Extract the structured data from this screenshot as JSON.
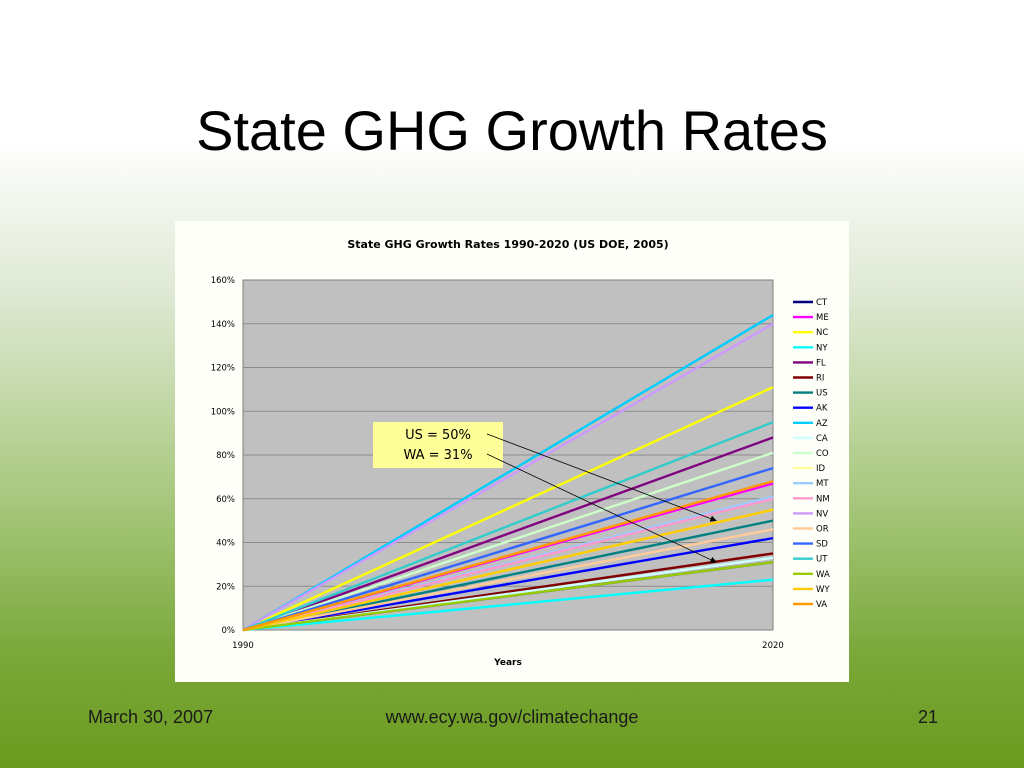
{
  "slide": {
    "title": "State GHG Growth Rates",
    "footer_date": "March 30, 2007",
    "footer_url": "www.ecy.wa.gov/climatechange",
    "page_number": "21"
  },
  "chart_data": {
    "type": "line",
    "title": "State GHG Growth Rates 1990-2020 (US DOE, 2005)",
    "xlabel": "Years",
    "ylabel": "",
    "x": [
      1990,
      2020
    ],
    "x_tick_labels": [
      "1990",
      "2020"
    ],
    "ylim": [
      0,
      1.6
    ],
    "y_ticks": [
      0,
      0.2,
      0.4,
      0.6,
      0.8,
      1.0,
      1.2,
      1.4,
      1.6
    ],
    "y_tick_labels": [
      "0%",
      "20%",
      "40%",
      "60%",
      "80%",
      "100%",
      "120%",
      "140%",
      "160%"
    ],
    "grid": true,
    "plot_background": "#c0c0c0",
    "legend_position": "right",
    "series": [
      {
        "name": "CT",
        "color": "#000080",
        "values": [
          0,
          0.31
        ]
      },
      {
        "name": "ME",
        "color": "#ff00ff",
        "values": [
          0,
          0.67
        ]
      },
      {
        "name": "NC",
        "color": "#ffff00",
        "values": [
          0,
          1.11
        ]
      },
      {
        "name": "NY",
        "color": "#00ffff",
        "values": [
          0,
          0.23
        ]
      },
      {
        "name": "FL",
        "color": "#800080",
        "values": [
          0,
          0.88
        ]
      },
      {
        "name": "RI",
        "color": "#800000",
        "values": [
          0,
          0.35
        ]
      },
      {
        "name": "US",
        "color": "#008080",
        "values": [
          0,
          0.5
        ]
      },
      {
        "name": "AK",
        "color": "#0000ff",
        "values": [
          0,
          0.42
        ]
      },
      {
        "name": "AZ",
        "color": "#00ccff",
        "values": [
          0,
          1.44
        ]
      },
      {
        "name": "CA",
        "color": "#ccffff",
        "values": [
          0,
          0.33
        ]
      },
      {
        "name": "CO",
        "color": "#ccffcc",
        "values": [
          0,
          0.81
        ]
      },
      {
        "name": "ID",
        "color": "#ffff99",
        "values": [
          0,
          0.55
        ]
      },
      {
        "name": "MT",
        "color": "#99ccff",
        "values": [
          0,
          0.61
        ]
      },
      {
        "name": "NM",
        "color": "#ff99cc",
        "values": [
          0,
          0.6
        ]
      },
      {
        "name": "NV",
        "color": "#cc99ff",
        "values": [
          0,
          1.4
        ]
      },
      {
        "name": "OR",
        "color": "#ffcc99",
        "values": [
          0,
          0.46
        ]
      },
      {
        "name": "SD",
        "color": "#3366ff",
        "values": [
          0,
          0.74
        ]
      },
      {
        "name": "UT",
        "color": "#33cccc",
        "values": [
          0,
          0.95
        ]
      },
      {
        "name": "WA",
        "color": "#99cc00",
        "values": [
          0,
          0.31
        ]
      },
      {
        "name": "WY",
        "color": "#ffcc00",
        "values": [
          0,
          0.55
        ]
      },
      {
        "name": "VA",
        "color": "#ff9900",
        "values": [
          0,
          0.68
        ]
      }
    ],
    "annotations": [
      {
        "lines": [
          "US = 50%",
          "WA = 31%"
        ],
        "targets": [
          {
            "x": 2017,
            "y": 0.5
          },
          {
            "x": 2017,
            "y": 0.31
          }
        ]
      }
    ]
  }
}
